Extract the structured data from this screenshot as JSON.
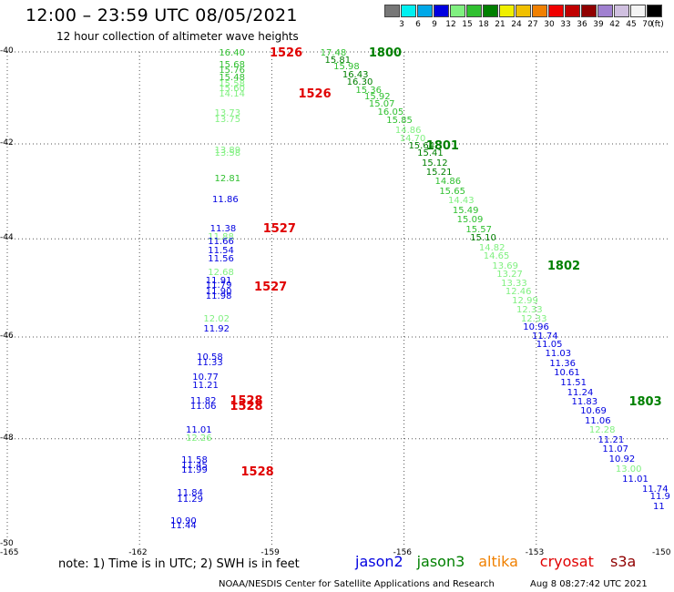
{
  "title": "12:00 – 23:59 UTC 08/05/2021",
  "subtitle": "12 hour collection of altimeter wave heights",
  "color_scale": {
    "unit_label": "(ft)",
    "bins": [
      {
        "label": "3",
        "color": "#777777"
      },
      {
        "label": "6",
        "color": "#00f0f0"
      },
      {
        "label": "9",
        "color": "#00a8e8"
      },
      {
        "label": "12",
        "color": "#0000e0"
      },
      {
        "label": "15",
        "color": "#80f080"
      },
      {
        "label": "18",
        "color": "#30c030"
      },
      {
        "label": "21",
        "color": "#008000"
      },
      {
        "label": "24",
        "color": "#f0f000"
      },
      {
        "label": "27",
        "color": "#f0c000"
      },
      {
        "label": "30",
        "color": "#f08000"
      },
      {
        "label": "33",
        "color": "#f00000"
      },
      {
        "label": "36",
        "color": "#c00000"
      },
      {
        "label": "39",
        "color": "#900000"
      },
      {
        "label": "42",
        "color": "#a080d0"
      },
      {
        "label": "45",
        "color": "#d0c0e0"
      },
      {
        "label": "70",
        "color": "#f4f4f4"
      },
      {
        "label": "",
        "color": "#000000"
      }
    ]
  },
  "axes": {
    "lon_ticks": [
      "-165",
      "-162",
      "-159",
      "-156",
      "-153",
      "-150"
    ],
    "lat_ticks": [
      "-40",
      "-42",
      "-44",
      "-46",
      "-48",
      "-50"
    ],
    "xlim": [
      -165,
      -150
    ],
    "ylim": [
      -50,
      -40
    ],
    "grid": "dotted"
  },
  "chart_data": {
    "type": "scatter",
    "points": [
      {
        "lon": -160.2,
        "lat": -40.05,
        "text": "16.40",
        "color": "#30c030"
      },
      {
        "lon": -157.9,
        "lat": -40.05,
        "text": "17.48",
        "color": "#30c030"
      },
      {
        "lon": -157.8,
        "lat": -40.2,
        "text": "15.81",
        "color": "#008000"
      },
      {
        "lon": -157.6,
        "lat": -40.35,
        "text": "15.98",
        "color": "#30c030"
      },
      {
        "lon": -160.2,
        "lat": -40.3,
        "text": "15.68",
        "color": "#30c030"
      },
      {
        "lon": -160.2,
        "lat": -40.42,
        "text": "15.76",
        "color": "#30c030"
      },
      {
        "lon": -157.4,
        "lat": -40.52,
        "text": "16.43",
        "color": "#008000"
      },
      {
        "lon": -160.2,
        "lat": -40.58,
        "text": "15.48",
        "color": "#30c030"
      },
      {
        "lon": -157.3,
        "lat": -40.68,
        "text": "16.30",
        "color": "#008000"
      },
      {
        "lon": -160.2,
        "lat": -40.72,
        "text": "15.58",
        "color": "#80f080"
      },
      {
        "lon": -160.2,
        "lat": -40.82,
        "text": "15.60",
        "color": "#80f080"
      },
      {
        "lon": -157.1,
        "lat": -40.85,
        "text": "15.36",
        "color": "#30c030"
      },
      {
        "lon": -160.2,
        "lat": -40.93,
        "text": "14.14",
        "color": "#80f080"
      },
      {
        "lon": -156.9,
        "lat": -41.0,
        "text": "15.92",
        "color": "#30c030"
      },
      {
        "lon": -156.8,
        "lat": -41.15,
        "text": "15.07",
        "color": "#30c030"
      },
      {
        "lon": -160.3,
        "lat": -41.35,
        "text": "13.73",
        "color": "#80f080"
      },
      {
        "lon": -156.6,
        "lat": -41.33,
        "text": "16.05",
        "color": "#30c030"
      },
      {
        "lon": -160.3,
        "lat": -41.5,
        "text": "13.75",
        "color": "#80f080"
      },
      {
        "lon": -156.4,
        "lat": -41.52,
        "text": "15.85",
        "color": "#30c030"
      },
      {
        "lon": -156.2,
        "lat": -41.72,
        "text": "14.86",
        "color": "#80f080"
      },
      {
        "lon": -156.1,
        "lat": -41.9,
        "text": "14.70",
        "color": "#80f080"
      },
      {
        "lon": -160.3,
        "lat": -42.15,
        "text": "13.89",
        "color": "#80f080"
      },
      {
        "lon": -160.3,
        "lat": -42.22,
        "text": "13.58",
        "color": "#80f080"
      },
      {
        "lon": -155.9,
        "lat": -42.05,
        "text": "15.64",
        "color": "#008000"
      },
      {
        "lon": -155.7,
        "lat": -42.22,
        "text": "15.41",
        "color": "#008000"
      },
      {
        "lon": -155.6,
        "lat": -42.42,
        "text": "15.12",
        "color": "#008000"
      },
      {
        "lon": -155.5,
        "lat": -42.62,
        "text": "15.21",
        "color": "#008000"
      },
      {
        "lon": -160.3,
        "lat": -42.75,
        "text": "12.81",
        "color": "#30c030"
      },
      {
        "lon": -155.3,
        "lat": -42.82,
        "text": "14.86",
        "color": "#30c030"
      },
      {
        "lon": -155.2,
        "lat": -43.02,
        "text": "15.65",
        "color": "#30c030"
      },
      {
        "lon": -160.35,
        "lat": -43.2,
        "text": "11.86",
        "color": "#0000e0"
      },
      {
        "lon": -155.0,
        "lat": -43.22,
        "text": "14.43",
        "color": "#80f080"
      },
      {
        "lon": -154.9,
        "lat": -43.42,
        "text": "15.49",
        "color": "#30c030"
      },
      {
        "lon": -154.8,
        "lat": -43.62,
        "text": "15.09",
        "color": "#30c030"
      },
      {
        "lon": -160.4,
        "lat": -43.8,
        "text": "11.38",
        "color": "#0000e0"
      },
      {
        "lon": -154.6,
        "lat": -43.82,
        "text": "15.57",
        "color": "#30c030"
      },
      {
        "lon": -160.45,
        "lat": -43.97,
        "text": "11.88",
        "color": "#80f080"
      },
      {
        "lon": -154.5,
        "lat": -44.0,
        "text": "15.10",
        "color": "#008000"
      },
      {
        "lon": -160.45,
        "lat": -44.08,
        "text": "11.66",
        "color": "#0000e0"
      },
      {
        "lon": -154.3,
        "lat": -44.2,
        "text": "14.82",
        "color": "#80f080"
      },
      {
        "lon": -160.45,
        "lat": -44.25,
        "text": "11.54",
        "color": "#0000e0"
      },
      {
        "lon": -154.2,
        "lat": -44.38,
        "text": "14.65",
        "color": "#80f080"
      },
      {
        "lon": -160.45,
        "lat": -44.42,
        "text": "11.56",
        "color": "#0000e0"
      },
      {
        "lon": -154.0,
        "lat": -44.57,
        "text": "13.69",
        "color": "#80f080"
      },
      {
        "lon": -160.45,
        "lat": -44.7,
        "text": "12.68",
        "color": "#80f080"
      },
      {
        "lon": -153.9,
        "lat": -44.75,
        "text": "13.27",
        "color": "#80f080"
      },
      {
        "lon": -160.5,
        "lat": -44.88,
        "text": "11.91",
        "color": "#0000e0"
      },
      {
        "lon": -160.5,
        "lat": -44.97,
        "text": "11.79",
        "color": "#0000e0"
      },
      {
        "lon": -153.8,
        "lat": -44.93,
        "text": "13.33",
        "color": "#80f080"
      },
      {
        "lon": -160.5,
        "lat": -45.1,
        "text": "11.90",
        "color": "#0000e0"
      },
      {
        "lon": -153.7,
        "lat": -45.1,
        "text": "12.46",
        "color": "#80f080"
      },
      {
        "lon": -160.5,
        "lat": -45.2,
        "text": "11.98",
        "color": "#0000e0"
      },
      {
        "lon": -153.55,
        "lat": -45.28,
        "text": "12.99",
        "color": "#80f080"
      },
      {
        "lon": -153.45,
        "lat": -45.47,
        "text": "12.33",
        "color": "#80f080"
      },
      {
        "lon": -160.55,
        "lat": -45.65,
        "text": "12.02",
        "color": "#80f080"
      },
      {
        "lon": -153.35,
        "lat": -45.65,
        "text": "12.33",
        "color": "#80f080"
      },
      {
        "lon": -153.3,
        "lat": -45.82,
        "text": "10.96",
        "color": "#0000e0"
      },
      {
        "lon": -160.55,
        "lat": -45.85,
        "text": "11.92",
        "color": "#0000e0"
      },
      {
        "lon": -153.1,
        "lat": -46.0,
        "text": "11.74",
        "color": "#0000e0"
      },
      {
        "lon": -153.0,
        "lat": -46.17,
        "text": "11.05",
        "color": "#0000e0"
      },
      {
        "lon": -152.8,
        "lat": -46.35,
        "text": "11.03",
        "color": "#0000e0"
      },
      {
        "lon": -160.7,
        "lat": -46.42,
        "text": "10.58",
        "color": "#0000e0"
      },
      {
        "lon": -152.7,
        "lat": -46.55,
        "text": "11.36",
        "color": "#0000e0"
      },
      {
        "lon": -160.7,
        "lat": -46.52,
        "text": "11.33",
        "color": "#0000e0"
      },
      {
        "lon": -152.6,
        "lat": -46.73,
        "text": "10.61",
        "color": "#0000e0"
      },
      {
        "lon": -160.8,
        "lat": -46.82,
        "text": "10.77",
        "color": "#0000e0"
      },
      {
        "lon": -152.45,
        "lat": -46.92,
        "text": "11.51",
        "color": "#0000e0"
      },
      {
        "lon": -160.8,
        "lat": -46.97,
        "text": "11.21",
        "color": "#0000e0"
      },
      {
        "lon": -152.3,
        "lat": -47.12,
        "text": "11.24",
        "color": "#0000e0"
      },
      {
        "lon": -160.85,
        "lat": -47.28,
        "text": "11.82",
        "color": "#0000e0"
      },
      {
        "lon": -152.2,
        "lat": -47.3,
        "text": "11.83",
        "color": "#0000e0"
      },
      {
        "lon": -160.85,
        "lat": -47.38,
        "text": "11.06",
        "color": "#0000e0"
      },
      {
        "lon": -152.0,
        "lat": -47.48,
        "text": "10.69",
        "color": "#0000e0"
      },
      {
        "lon": -151.9,
        "lat": -47.67,
        "text": "11.06",
        "color": "#0000e0"
      },
      {
        "lon": -151.8,
        "lat": -47.85,
        "text": "12.28",
        "color": "#80f080"
      },
      {
        "lon": -160.95,
        "lat": -47.85,
        "text": "11.01",
        "color": "#0000e0"
      },
      {
        "lon": -160.95,
        "lat": -48.0,
        "text": "12.26",
        "color": "#80f080"
      },
      {
        "lon": -151.6,
        "lat": -48.03,
        "text": "11.21",
        "color": "#0000e0"
      },
      {
        "lon": -151.5,
        "lat": -48.22,
        "text": "11.07",
        "color": "#0000e0"
      },
      {
        "lon": -151.35,
        "lat": -48.4,
        "text": "10.92",
        "color": "#0000e0"
      },
      {
        "lon": -161.05,
        "lat": -48.42,
        "text": "11.58",
        "color": "#0000e0"
      },
      {
        "lon": -161.05,
        "lat": -48.52,
        "text": "11.45",
        "color": "#0000e0"
      },
      {
        "lon": -151.2,
        "lat": -48.6,
        "text": "13.00",
        "color": "#80f080"
      },
      {
        "lon": -161.05,
        "lat": -48.62,
        "text": "11.99",
        "color": "#0000e0"
      },
      {
        "lon": -151.05,
        "lat": -48.78,
        "text": "11.01",
        "color": "#0000e0"
      },
      {
        "lon": -150.6,
        "lat": -48.98,
        "text": "11.74",
        "color": "#0000e0"
      },
      {
        "lon": -161.15,
        "lat": -49.05,
        "text": "11.84",
        "color": "#0000e0"
      },
      {
        "lon": -150.4,
        "lat": -49.12,
        "text": "11.9",
        "color": "#0000e0"
      },
      {
        "lon": -161.15,
        "lat": -49.16,
        "text": "11.29",
        "color": "#0000e0"
      },
      {
        "lon": -150.35,
        "lat": -49.3,
        "text": "11",
        "color": "#0000e0"
      },
      {
        "lon": -161.3,
        "lat": -49.57,
        "text": "10.90",
        "color": "#0000e0"
      },
      {
        "lon": -161.3,
        "lat": -49.66,
        "text": "11.44",
        "color": "#0000e0"
      }
    ],
    "time_labels": [
      {
        "lon": -159.05,
        "lat": -40.05,
        "text": "1526",
        "color": "#e00000"
      },
      {
        "lon": -158.4,
        "lat": -40.93,
        "text": "1526",
        "color": "#e00000"
      },
      {
        "lon": -156.8,
        "lat": -40.05,
        "text": "1800",
        "color": "#008000"
      },
      {
        "lon": -155.5,
        "lat": -42.05,
        "text": "1801",
        "color": "#008000"
      },
      {
        "lon": -159.2,
        "lat": -43.8,
        "text": "1527",
        "color": "#e00000"
      },
      {
        "lon": -152.75,
        "lat": -44.57,
        "text": "1802",
        "color": "#008000"
      },
      {
        "lon": -159.4,
        "lat": -45.0,
        "text": "1527",
        "color": "#e00000"
      },
      {
        "lon": -150.9,
        "lat": -47.3,
        "text": "1803",
        "color": "#008000"
      },
      {
        "lon": -159.95,
        "lat": -47.28,
        "text": "1528",
        "color": "#e00000"
      },
      {
        "lon": -159.95,
        "lat": -47.38,
        "text": "1528",
        "color": "#e00000"
      },
      {
        "lon": -159.7,
        "lat": -48.65,
        "text": "1528",
        "color": "#e00000"
      }
    ]
  },
  "note": "note:  1) Time is in UTC;  2) SWH is in feet",
  "satellites": [
    {
      "name": "jason2",
      "color": "#0000e0"
    },
    {
      "name": "jason3",
      "color": "#008000"
    },
    {
      "name": "altika",
      "color": "#f08000"
    },
    {
      "name": "cryosat",
      "color": "#e00000"
    },
    {
      "name": "s3a",
      "color": "#900000"
    }
  ],
  "credit": "NOAA/NESDIS Center for Satellite Applications and Research",
  "timestamp": "Aug  8 08:27:42 UTC 2021"
}
